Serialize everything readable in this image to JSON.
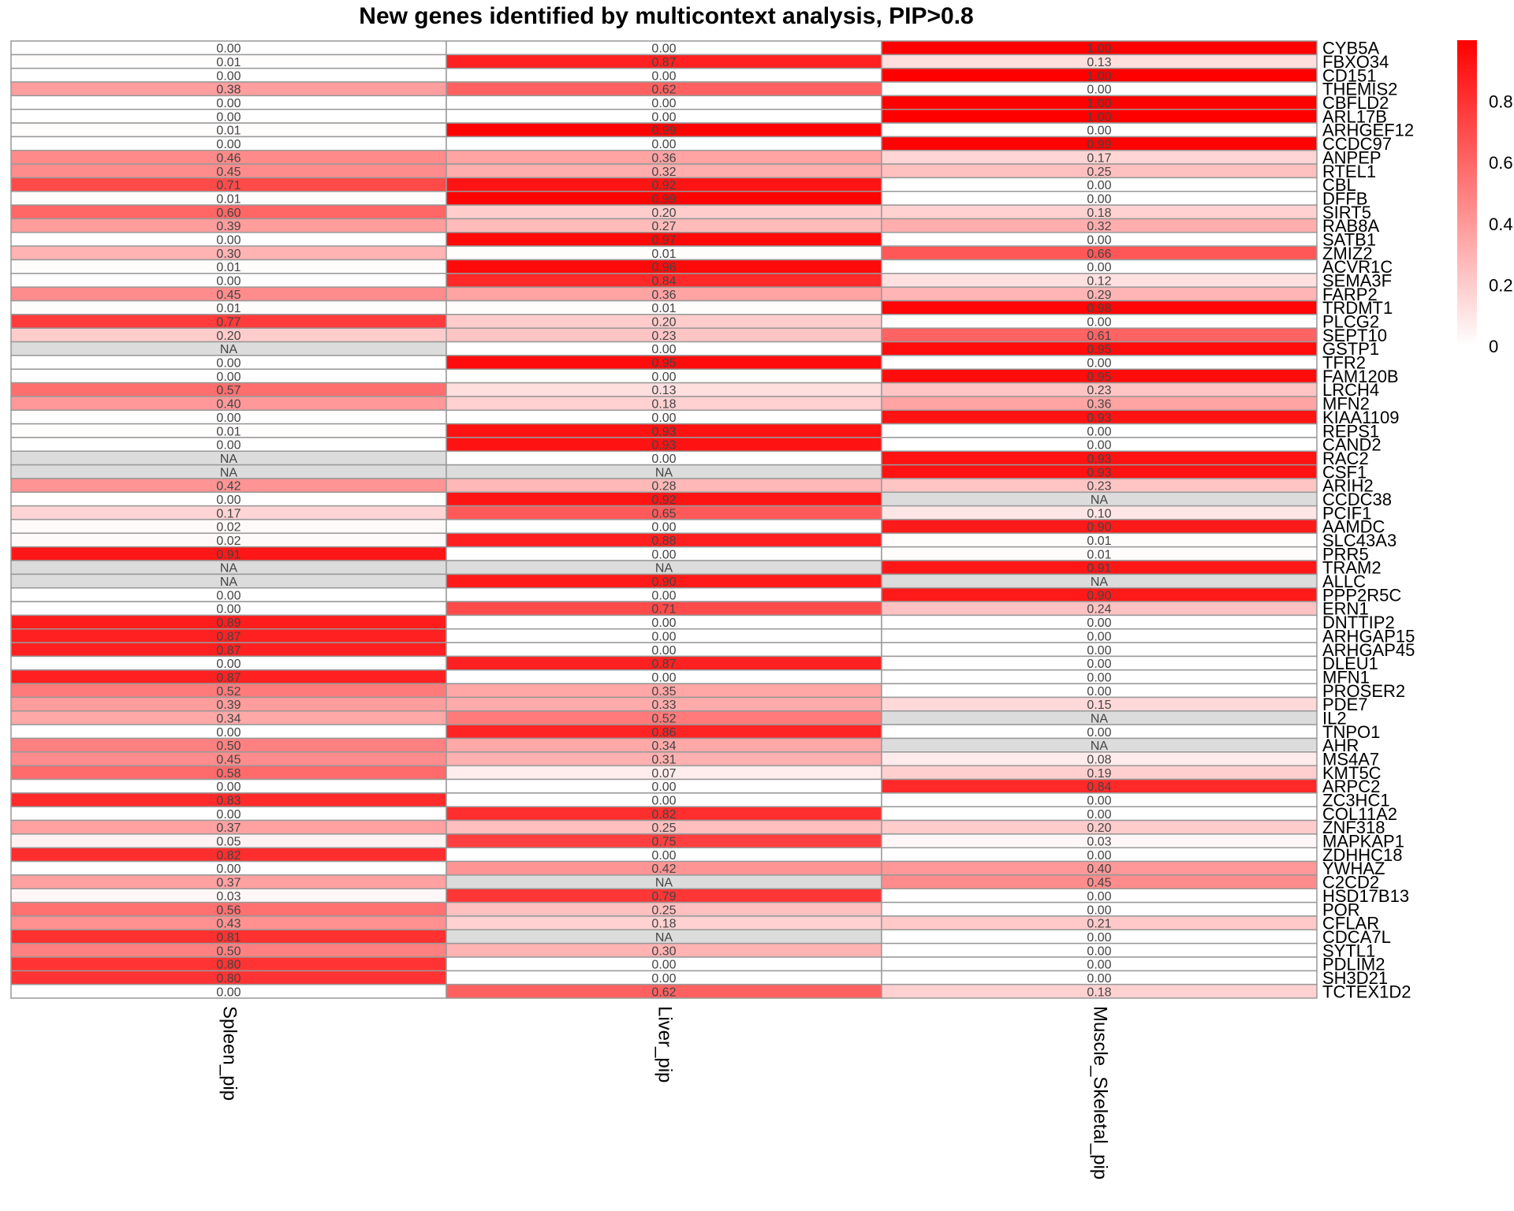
{
  "chart_data": {
    "type": "heatmap",
    "title": "New genes identified by multicontext analysis, PIP>0.8",
    "columns": [
      "Spleen_pip",
      "Liver_pip",
      "Muscle_Skeletal_pip"
    ],
    "rows": [
      "CYB5A",
      "FBXO34",
      "CD151",
      "THEMIS2",
      "CBFLD2",
      "ARL17B",
      "ARHGEF12",
      "CCDC97",
      "ANPEP",
      "RTEL1",
      "CBL",
      "DFFB",
      "SIRT5",
      "RAB8A",
      "SATB1",
      "ZMIZ2",
      "ACVR1C",
      "SEMA3F",
      "FARP2",
      "TRDMT1",
      "PLCG2",
      "SEPT10",
      "GSTP1",
      "TFR2",
      "FAM120B",
      "LRCH4",
      "MFN2",
      "KIAA1109",
      "REPS1",
      "CAND2",
      "RAC2",
      "CSF1",
      "ARIH2",
      "CCDC38",
      "PCIF1",
      "AAMDC",
      "SLC43A3",
      "PRR5",
      "TRAM2",
      "ALLC",
      "PPP2R5C",
      "ERN1",
      "DNTTIP2",
      "ARHGAP15",
      "ARHGAP45",
      "DLEU1",
      "MFN1",
      "PROSER2",
      "PDE7",
      "IL2",
      "TNPO1",
      "AHR",
      "MS4A7",
      "KMT5C",
      "ARPC2",
      "ZC3HC1",
      "COL11A2",
      "ZNF318",
      "MAPKAP1",
      "ZDHHC18",
      "YWHAZ",
      "C2CD2",
      "HSD17B13",
      "POR",
      "CFLAR",
      "CDCA7L",
      "SYTL1",
      "PDLIM2",
      "SH3D21",
      "TCTEX1D2"
    ],
    "values": [
      [
        0.0,
        0.0,
        1.0
      ],
      [
        0.01,
        0.87,
        0.13
      ],
      [
        0.0,
        0.0,
        1.0
      ],
      [
        0.38,
        0.62,
        0.0
      ],
      [
        0.0,
        0.0,
        1.0
      ],
      [
        0.0,
        0.0,
        1.0
      ],
      [
        0.01,
        0.99,
        0.0
      ],
      [
        0.0,
        0.0,
        0.99
      ],
      [
        0.46,
        0.36,
        0.17
      ],
      [
        0.45,
        0.32,
        0.25
      ],
      [
        0.71,
        0.92,
        0.0
      ],
      [
        0.01,
        0.99,
        0.0
      ],
      [
        0.6,
        0.2,
        0.18
      ],
      [
        0.39,
        0.27,
        0.32
      ],
      [
        0.0,
        0.97,
        0.0
      ],
      [
        0.3,
        0.01,
        0.66
      ],
      [
        0.01,
        0.96,
        0.0
      ],
      [
        0.0,
        0.84,
        0.12
      ],
      [
        0.45,
        0.36,
        0.29
      ],
      [
        0.01,
        0.01,
        0.98
      ],
      [
        0.77,
        0.2,
        0.0
      ],
      [
        0.2,
        0.23,
        0.61
      ],
      [
        null,
        0.0,
        0.95
      ],
      [
        0.0,
        0.95,
        0.0
      ],
      [
        0.0,
        0.0,
        0.95
      ],
      [
        0.57,
        0.13,
        0.23
      ],
      [
        0.4,
        0.18,
        0.36
      ],
      [
        0.0,
        0.0,
        0.93
      ],
      [
        0.01,
        0.93,
        0.0
      ],
      [
        0.0,
        0.93,
        0.0
      ],
      [
        null,
        0.0,
        0.93
      ],
      [
        null,
        null,
        0.93
      ],
      [
        0.42,
        0.28,
        0.23
      ],
      [
        0.0,
        0.92,
        null
      ],
      [
        0.17,
        0.65,
        0.1
      ],
      [
        0.02,
        0.0,
        0.9
      ],
      [
        0.02,
        0.88,
        0.01
      ],
      [
        0.91,
        0.0,
        0.01
      ],
      [
        null,
        null,
        0.91
      ],
      [
        null,
        0.9,
        null
      ],
      [
        0.0,
        0.0,
        0.9
      ],
      [
        0.0,
        0.71,
        0.24
      ],
      [
        0.89,
        0.0,
        0.0
      ],
      [
        0.87,
        0.0,
        0.0
      ],
      [
        0.87,
        0.0,
        0.0
      ],
      [
        0.0,
        0.87,
        0.0
      ],
      [
        0.87,
        0.0,
        0.0
      ],
      [
        0.52,
        0.35,
        0.0
      ],
      [
        0.39,
        0.33,
        0.15
      ],
      [
        0.34,
        0.52,
        null
      ],
      [
        0.0,
        0.86,
        0.0
      ],
      [
        0.5,
        0.34,
        null
      ],
      [
        0.45,
        0.31,
        0.08
      ],
      [
        0.58,
        0.07,
        0.19
      ],
      [
        0.0,
        0.0,
        0.84
      ],
      [
        0.83,
        0.0,
        0.0
      ],
      [
        0.0,
        0.82,
        0.0
      ],
      [
        0.37,
        0.25,
        0.2
      ],
      [
        0.05,
        0.75,
        0.03
      ],
      [
        0.82,
        0.0,
        0.0
      ],
      [
        0.0,
        0.42,
        0.4
      ],
      [
        0.37,
        null,
        0.45
      ],
      [
        0.03,
        0.79,
        0.0
      ],
      [
        0.56,
        0.25,
        0.0
      ],
      [
        0.43,
        0.18,
        0.21
      ],
      [
        0.81,
        null,
        0.0
      ],
      [
        0.5,
        0.3,
        0.0
      ],
      [
        0.8,
        0.0,
        0.0
      ],
      [
        0.8,
        0.0,
        0.0
      ],
      [
        0.0,
        0.62,
        0.18
      ]
    ],
    "na_label": "NA",
    "value_format_decimals": 2,
    "color_low": "#ffffff",
    "color_high": "#ff0000",
    "na_color": "#dcdcdc",
    "cell_border_color": "#999999",
    "legend": {
      "placement": "right",
      "range": [
        0,
        1
      ],
      "ticks": [
        0,
        0.2,
        0.4,
        0.6,
        0.8
      ],
      "tick_labels": [
        "0",
        "0.2",
        "0.4",
        "0.6",
        "0.8"
      ]
    }
  }
}
